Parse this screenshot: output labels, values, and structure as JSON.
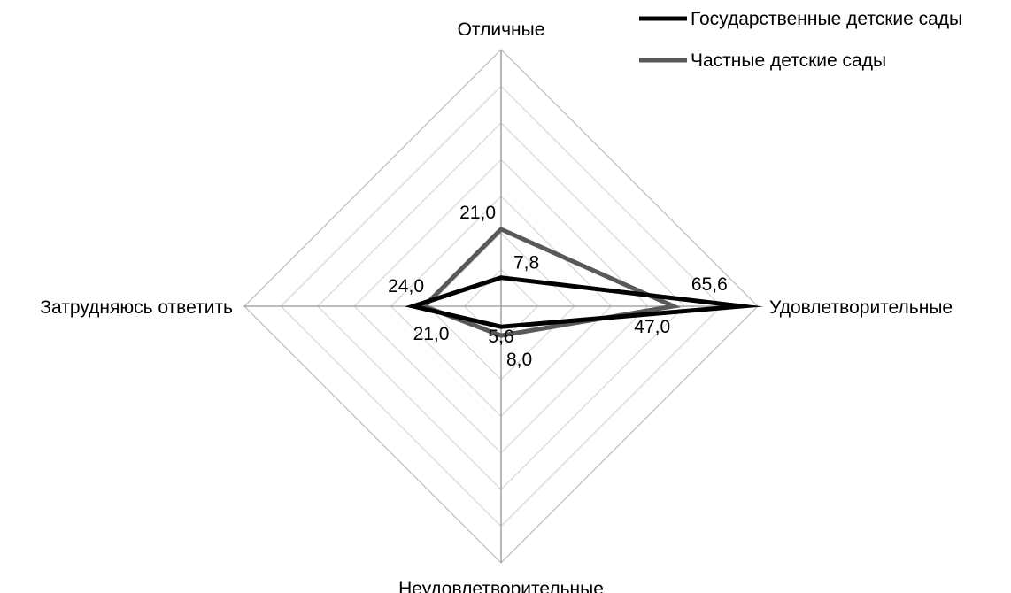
{
  "chart_data": {
    "type": "radar",
    "categories": [
      "Отличные",
      "Удовлетворительные",
      "Неудовлетворительные",
      "Затрудняюсь ответить"
    ],
    "series": [
      {
        "name": "Государственные детские сады",
        "values": [
          7.8,
          65.6,
          5.6,
          24.0
        ],
        "value_labels": [
          "7,8",
          "65,6",
          "5,6",
          "24,0"
        ],
        "color": "#000000"
      },
      {
        "name": "Частные детские сады",
        "values": [
          21.0,
          47.0,
          8.0,
          21.0
        ],
        "value_labels": [
          "21,0",
          "47,0",
          "8,0",
          "21,0"
        ],
        "color": "#595959"
      }
    ],
    "rmax": 70,
    "ring_step": 10,
    "grid": true,
    "grid_color": "#d9d9d9",
    "axis_color": "#a6a6a6",
    "legend_position": "top-right"
  }
}
